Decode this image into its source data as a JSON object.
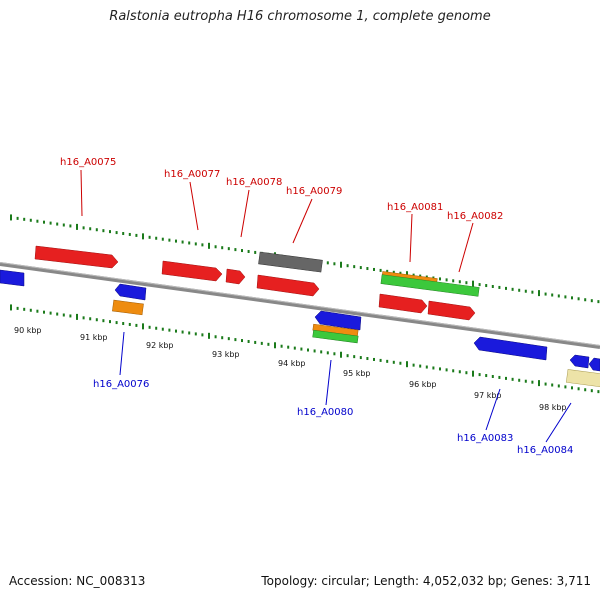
{
  "title": "Ralstonia eutropha H16 chromosome 1, complete genome",
  "footer": {
    "accession": "Accession: NC_008313",
    "topology": "Topology: circular; Length: 4,052,032 bp; Genes: 3,711"
  },
  "colors": {
    "forward_label": "#cc0000",
    "reverse_label": "#0000cc",
    "forward_tick": "#1a7a1a",
    "backbone": "#777777",
    "red": "#e62020",
    "blue": "#1a1adc",
    "orange": "#ee8c10",
    "green": "#3cc83c",
    "grey": "#666666",
    "cream": "#ede3a8"
  },
  "kbp_labels": [
    "90 kbp",
    "91 kbp",
    "92 kbp",
    "93 kbp",
    "94 kbp",
    "95 kbp",
    "96 kbp",
    "97 kbp",
    "98 kbp"
  ],
  "gene_labels": {
    "forward": [
      "h16_A0075",
      "h16_A0077",
      "h16_A0078",
      "h16_A0079",
      "h16_A0081",
      "h16_A0082"
    ],
    "reverse": [
      "h16_A0076",
      "h16_A0080",
      "h16_A0083",
      "h16_A0084"
    ]
  }
}
